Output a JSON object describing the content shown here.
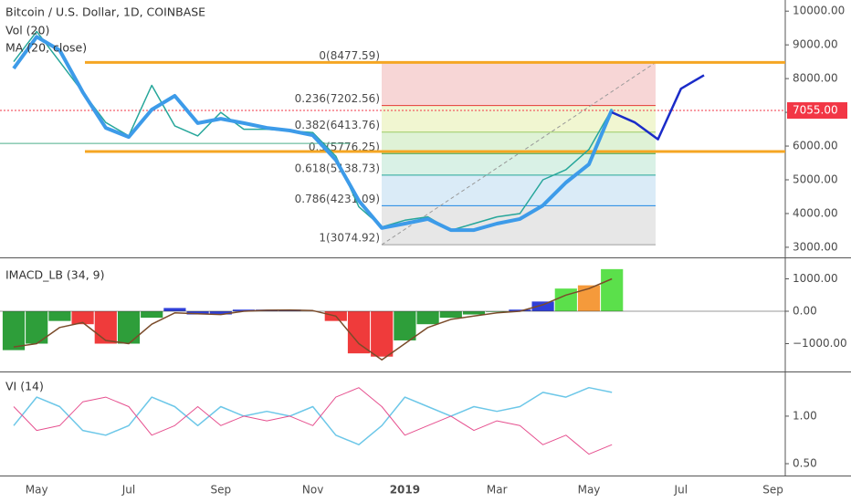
{
  "chart_data": [
    {
      "type": "line",
      "title": "Bitcoin / U.S. Dollar, 1D, COINBASE",
      "subtitles": [
        "Vol (20)",
        "MA (20, close)"
      ],
      "ylim": [
        2700,
        10330
      ],
      "yticks": [
        {
          "value": 3000,
          "label": "3000.00"
        },
        {
          "value": 4000,
          "label": "4000.00"
        },
        {
          "value": 5000,
          "label": "5000.00"
        },
        {
          "value": 6000,
          "label": "6000.00"
        },
        {
          "value": 7000,
          "label": "7000.00"
        },
        {
          "value": 8000,
          "label": "8000.00"
        },
        {
          "value": 9000,
          "label": "9000.00"
        },
        {
          "value": 10000,
          "label": "10000.00"
        }
      ],
      "series": [
        {
          "color": "#26a69a",
          "values": [
            8500,
            9400,
            8500,
            7600,
            6700,
            6300,
            7800,
            6600,
            6300,
            7000,
            6500,
            6500,
            6450,
            6400,
            5700,
            4200,
            3600,
            3800,
            3900,
            3500,
            3700,
            3900,
            4000,
            5000,
            5300,
            5900,
            7100,
            null,
            null,
            null,
            null,
            null,
            null,
            null
          ]
        },
        {
          "name": "MA (20, close)",
          "color": "#3d9be9",
          "values": [
            8300,
            9240,
            8840,
            7600,
            6540,
            6270,
            7080,
            7490,
            6680,
            6810,
            6680,
            6540,
            6460,
            6320,
            5590,
            4380,
            3570,
            3700,
            3840,
            3510,
            3510,
            3700,
            3840,
            4240,
            4920,
            5460,
            7080,
            null,
            null,
            null,
            null,
            null,
            null,
            null
          ]
        },
        {
          "color": "#1a2bc8",
          "values": [
            null,
            null,
            null,
            null,
            null,
            null,
            null,
            null,
            null,
            null,
            null,
            null,
            null,
            null,
            null,
            null,
            null,
            null,
            null,
            null,
            null,
            null,
            null,
            null,
            null,
            null,
            7000,
            6700,
            6200,
            7700,
            8100,
            null,
            null,
            null
          ]
        }
      ],
      "levels": [
        {
          "value": 8480,
          "color": "#f5a623"
        },
        {
          "value": 5840,
          "color": "#f5a623"
        },
        {
          "value": 6080,
          "color": "#4caf8a"
        }
      ],
      "fib_levels": [
        {
          "label": "0(8477.59)",
          "value": 8477.59,
          "color": "#e57373",
          "fill": "#f6cfcf"
        },
        {
          "label": "0.236(7202.56)",
          "value": 7202.56,
          "color": "#e53935",
          "fill": "#eef5c9"
        },
        {
          "label": "0.382(6413.76)",
          "value": 6413.76,
          "color": "#9ccc65",
          "fill": "#d9f0cf"
        },
        {
          "label": "0.5(5776.25)",
          "value": 5776.25,
          "color": "#43a047",
          "fill": "#d2efe2"
        },
        {
          "label": "0.618(5138.73)",
          "value": 5138.73,
          "color": "#26a69a",
          "fill": "#d4e7f6"
        },
        {
          "label": "0.786(4231.09)",
          "value": 4231.09,
          "color": "#1e88e5",
          "fill": "#e3e3e3"
        },
        {
          "label": "1(3074.92)",
          "value": 3074.92,
          "color": "#9e9e9e",
          "fill": "none"
        }
      ],
      "last_price": {
        "value": 7055,
        "label": "7055.00",
        "color": "#f23645"
      }
    },
    {
      "type": "bar",
      "title": "IMACD_LB (34, 9)",
      "ylim": [
        -1859,
        1634
      ],
      "yticks": [
        {
          "value": -1000,
          "label": "−1000.00"
        },
        {
          "value": 0,
          "label": "0.00"
        },
        {
          "value": 1000,
          "label": "1000.00"
        }
      ],
      "values": [
        -1200,
        -1000,
        -300,
        -400,
        -1000,
        -1000,
        -200,
        100,
        -100,
        -100,
        50,
        50,
        50,
        0,
        -300,
        -1300,
        -1400,
        -900,
        -400,
        -200,
        -100,
        -20,
        50,
        300,
        700,
        800,
        1300,
        null,
        null,
        null,
        null,
        null,
        null,
        null
      ],
      "colors": [
        "#2e9e3a",
        "#2e9e3a",
        "#2e9e3a",
        "#ef3b3b",
        "#ef3b3b",
        "#2e9e3a",
        "#2e9e3a",
        "#2f3fd8",
        "#2f3fd8",
        "#2f3fd8",
        "#2f3fd8",
        "#2f3fd8",
        "#2f3fd8",
        "#2f3fd8",
        "#ef3b3b",
        "#ef3b3b",
        "#ef3b3b",
        "#2e9e3a",
        "#2e9e3a",
        "#2e9e3a",
        "#2e9e3a",
        "#2e9e3a",
        "#2f3fd8",
        "#2f3fd8",
        "#5be04b",
        "#f59a3b",
        "#5be04b",
        null,
        null,
        null,
        null,
        null,
        null,
        null
      ],
      "signal": {
        "color": "#7a4b2a",
        "values": [
          -1100,
          -1000,
          -500,
          -350,
          -900,
          -1000,
          -400,
          -50,
          -80,
          -100,
          0,
          30,
          40,
          20,
          -150,
          -1000,
          -1500,
          -1000,
          -500,
          -250,
          -150,
          -50,
          0,
          200,
          500,
          700,
          1000,
          null,
          null,
          null,
          null,
          null,
          null,
          null
        ]
      }
    },
    {
      "type": "line",
      "title": "VI (14)",
      "ylim": [
        0.385,
        1.46
      ],
      "yticks": [
        {
          "value": 0.5,
          "label": "0.50"
        },
        {
          "value": 1,
          "label": "1.00"
        }
      ],
      "categories": [
        null,
        "May",
        null,
        null,
        null,
        "Jul",
        null,
        null,
        null,
        "Sep",
        null,
        null,
        null,
        "Nov",
        null,
        null,
        null,
        "2019",
        null,
        null,
        null,
        "Mar",
        null,
        null,
        null,
        "May",
        null,
        null,
        null,
        "Jul",
        null,
        null,
        null,
        "Sep"
      ],
      "series": [
        {
          "color": "#6cc7e8",
          "values": [
            0.9,
            1.2,
            1.1,
            0.85,
            0.8,
            0.9,
            1.2,
            1.1,
            0.9,
            1.1,
            1.0,
            1.05,
            1.0,
            1.1,
            0.8,
            0.7,
            0.9,
            1.2,
            1.1,
            1.0,
            1.1,
            1.05,
            1.1,
            1.25,
            1.2,
            1.3,
            1.25,
            null,
            null,
            null,
            null,
            null,
            null,
            null
          ]
        },
        {
          "color": "#e6508f",
          "values": [
            1.1,
            0.85,
            0.9,
            1.15,
            1.2,
            1.1,
            0.8,
            0.9,
            1.1,
            0.9,
            1.0,
            0.95,
            1.0,
            0.9,
            1.2,
            1.3,
            1.1,
            0.8,
            0.9,
            1.0,
            0.85,
            0.95,
            0.9,
            0.7,
            0.8,
            0.6,
            0.7,
            null,
            null,
            null,
            null,
            null,
            null,
            null
          ]
        }
      ]
    }
  ]
}
